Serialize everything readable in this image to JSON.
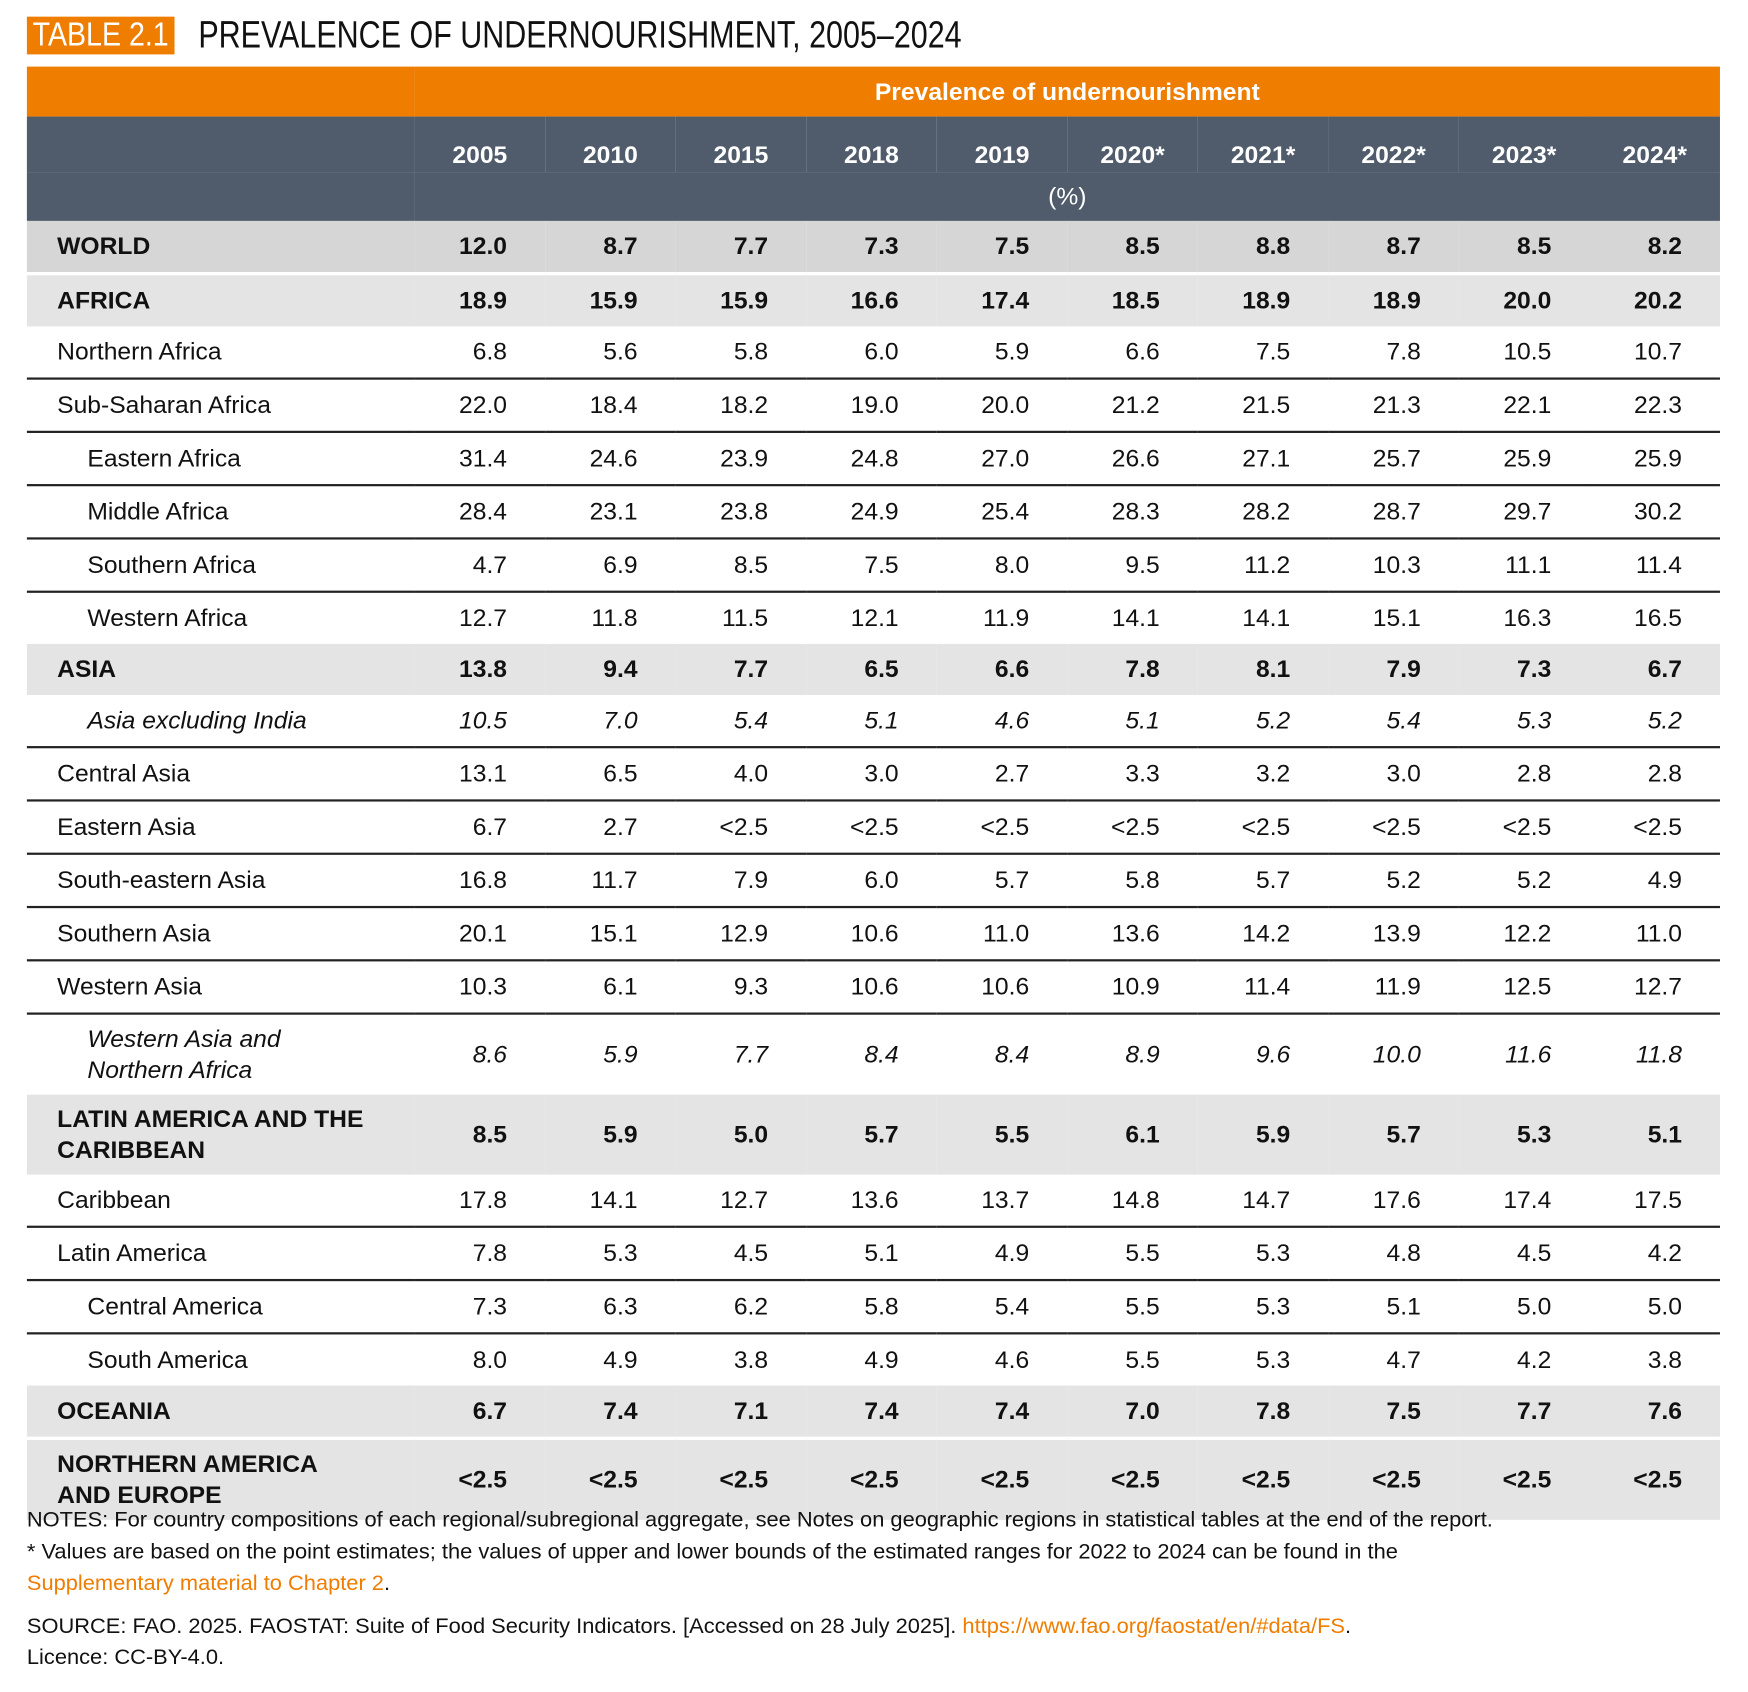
{
  "title": {
    "tag": "TABLE 2.1",
    "text": "PREVALENCE OF UNDERNOURISHMENT, 2005–2024"
  },
  "header": {
    "group": "Prevalence of undernourishment",
    "years": [
      "2005",
      "2010",
      "2015",
      "2018",
      "2019",
      "2020*",
      "2021*",
      "2022*",
      "2023*",
      "2024*"
    ],
    "unit": "(%)"
  },
  "colors": {
    "accent": "#ef7d00",
    "header_bg": "#505c6c",
    "aggregate_bg": "#e4e4e4"
  },
  "rows": [
    {
      "label": "WORLD",
      "type": "world",
      "values": [
        "12.0",
        "8.7",
        "7.7",
        "7.3",
        "7.5",
        "8.5",
        "8.8",
        "8.7",
        "8.5",
        "8.2"
      ]
    },
    {
      "label": "AFRICA",
      "type": "agg",
      "values": [
        "18.9",
        "15.9",
        "15.9",
        "16.6",
        "17.4",
        "18.5",
        "18.9",
        "18.9",
        "20.0",
        "20.2"
      ]
    },
    {
      "label": "Northern Africa",
      "type": "normal",
      "values": [
        "6.8",
        "5.6",
        "5.8",
        "6.0",
        "5.9",
        "6.6",
        "7.5",
        "7.8",
        "10.5",
        "10.7"
      ]
    },
    {
      "label": "Sub-Saharan Africa",
      "type": "normal",
      "values": [
        "22.0",
        "18.4",
        "18.2",
        "19.0",
        "20.0",
        "21.2",
        "21.5",
        "21.3",
        "22.1",
        "22.3"
      ]
    },
    {
      "label": "Eastern Africa",
      "type": "indent",
      "values": [
        "31.4",
        "24.6",
        "23.9",
        "24.8",
        "27.0",
        "26.6",
        "27.1",
        "25.7",
        "25.9",
        "25.9"
      ]
    },
    {
      "label": "Middle Africa",
      "type": "indent",
      "values": [
        "28.4",
        "23.1",
        "23.8",
        "24.9",
        "25.4",
        "28.3",
        "28.2",
        "28.7",
        "29.7",
        "30.2"
      ]
    },
    {
      "label": "Southern Africa",
      "type": "indent",
      "values": [
        "4.7",
        "6.9",
        "8.5",
        "7.5",
        "8.0",
        "9.5",
        "11.2",
        "10.3",
        "11.1",
        "11.4"
      ]
    },
    {
      "label": "Western Africa",
      "type": "indent",
      "values": [
        "12.7",
        "11.8",
        "11.5",
        "12.1",
        "11.9",
        "14.1",
        "14.1",
        "15.1",
        "16.3",
        "16.5"
      ]
    },
    {
      "label": "ASIA",
      "type": "agg",
      "values": [
        "13.8",
        "9.4",
        "7.7",
        "6.5",
        "6.6",
        "7.8",
        "8.1",
        "7.9",
        "7.3",
        "6.7"
      ]
    },
    {
      "label": "Asia excluding India",
      "type": "italic-indent",
      "values": [
        "10.5",
        "7.0",
        "5.4",
        "5.1",
        "4.6",
        "5.1",
        "5.2",
        "5.4",
        "5.3",
        "5.2"
      ]
    },
    {
      "label": "Central Asia",
      "type": "normal",
      "values": [
        "13.1",
        "6.5",
        "4.0",
        "3.0",
        "2.7",
        "3.3",
        "3.2",
        "3.0",
        "2.8",
        "2.8"
      ]
    },
    {
      "label": "Eastern Asia",
      "type": "normal",
      "values": [
        "6.7",
        "2.7",
        "<2.5",
        "<2.5",
        "<2.5",
        "<2.5",
        "<2.5",
        "<2.5",
        "<2.5",
        "<2.5"
      ]
    },
    {
      "label": "South-eastern Asia",
      "type": "normal",
      "values": [
        "16.8",
        "11.7",
        "7.9",
        "6.0",
        "5.7",
        "5.8",
        "5.7",
        "5.2",
        "5.2",
        "4.9"
      ]
    },
    {
      "label": "Southern Asia",
      "type": "normal",
      "values": [
        "20.1",
        "15.1",
        "12.9",
        "10.6",
        "11.0",
        "13.6",
        "14.2",
        "13.9",
        "12.2",
        "11.0"
      ]
    },
    {
      "label": "Western Asia",
      "type": "normal",
      "values": [
        "10.3",
        "6.1",
        "9.3",
        "10.6",
        "10.6",
        "10.9",
        "11.4",
        "11.9",
        "12.5",
        "12.7"
      ]
    },
    {
      "label": "Western Asia and Northern Africa",
      "type": "italic-indent-tall",
      "values": [
        "8.6",
        "5.9",
        "7.7",
        "8.4",
        "8.4",
        "8.9",
        "9.6",
        "10.0",
        "11.6",
        "11.8"
      ]
    },
    {
      "label": "LATIN AMERICA AND THE CARIBBEAN",
      "type": "agg-tall",
      "values": [
        "8.5",
        "5.9",
        "5.0",
        "5.7",
        "5.5",
        "6.1",
        "5.9",
        "5.7",
        "5.3",
        "5.1"
      ]
    },
    {
      "label": "Caribbean",
      "type": "normal",
      "values": [
        "17.8",
        "14.1",
        "12.7",
        "13.6",
        "13.7",
        "14.8",
        "14.7",
        "17.6",
        "17.4",
        "17.5"
      ]
    },
    {
      "label": "Latin America",
      "type": "normal",
      "values": [
        "7.8",
        "5.3",
        "4.5",
        "5.1",
        "4.9",
        "5.5",
        "5.3",
        "4.8",
        "4.5",
        "4.2"
      ]
    },
    {
      "label": "Central America",
      "type": "indent",
      "values": [
        "7.3",
        "6.3",
        "6.2",
        "5.8",
        "5.4",
        "5.5",
        "5.3",
        "5.1",
        "5.0",
        "5.0"
      ]
    },
    {
      "label": "South America",
      "type": "indent",
      "values": [
        "8.0",
        "4.9",
        "3.8",
        "4.9",
        "4.6",
        "5.5",
        "5.3",
        "4.7",
        "4.2",
        "3.8"
      ]
    },
    {
      "label": "OCEANIA",
      "type": "agg",
      "values": [
        "6.7",
        "7.4",
        "7.1",
        "7.4",
        "7.4",
        "7.0",
        "7.8",
        "7.5",
        "7.7",
        "7.6"
      ]
    },
    {
      "label": "NORTHERN AMERICA AND EUROPE",
      "type": "agg-tall",
      "values": [
        "<2.5",
        "<2.5",
        "<2.5",
        "<2.5",
        "<2.5",
        "<2.5",
        "<2.5",
        "<2.5",
        "<2.5",
        "<2.5"
      ]
    }
  ],
  "notes": {
    "line1": "NOTES: For country compositions of each regional/subregional aggregate, see Notes on geographic regions in statistical tables at the end of the report.",
    "line2": "* Values are based on the point estimates; the values of upper and lower bounds of the estimated ranges for 2022 to 2024 can be found in the",
    "link1": "Supplementary material to Chapter 2",
    "line2_end": ".",
    "source": "SOURCE: FAO. 2025. FAOSTAT: Suite of Food Security Indicators. [Accessed on 28 July 2025]. ",
    "link2": "https://www.fao.org/faostat/en/#data/FS",
    "source_end": ".",
    "licence": "Licence: CC-BY-4.0."
  }
}
